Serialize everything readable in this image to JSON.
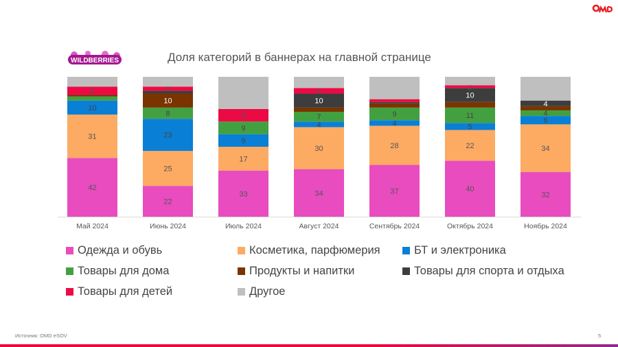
{
  "header": {
    "logo_text": "WILDBERRIES",
    "brand_logo": "OMD"
  },
  "footer": {
    "source": "Источник: OMD eSOV",
    "page_number": "5"
  },
  "chart_data": {
    "type": "bar",
    "stacked": true,
    "title": "Доля категорий в баннерах на главной странице",
    "xlabel": "",
    "ylabel": "",
    "ylim": [
      0,
      100
    ],
    "grid": false,
    "legend_position": "bottom",
    "categories": [
      "Май 2024",
      "Июнь 2024",
      "Июль 2024",
      "Август 2024",
      "Сентябрь 2024",
      "Октябрь 2024",
      "Ноябрь 2024"
    ],
    "series": [
      {
        "name": "Одежда и обувь",
        "color": "#e84cbf",
        "label_color": "#555555",
        "values": [
          42,
          22,
          33,
          34,
          37,
          40,
          32
        ],
        "labels": [
          "42",
          "22",
          "33",
          "34",
          "37",
          "40",
          "32"
        ]
      },
      {
        "name": "Косметика, парфюмерия",
        "color": "#fdaa63",
        "label_color": "#555555",
        "values": [
          31,
          25,
          17,
          30,
          28,
          22,
          34
        ],
        "labels": [
          "31",
          "25",
          "17",
          "30",
          "28",
          "22",
          "34"
        ]
      },
      {
        "name": "БТ и электроника",
        "color": "#0a7fd6",
        "label_color": "#444444",
        "values": [
          10,
          23,
          9,
          4,
          4,
          5,
          6
        ],
        "labels": [
          "10",
          "23",
          "9",
          "4",
          "4",
          "5",
          "6"
        ]
      },
      {
        "name": "Товары для дома",
        "color": "#43a041",
        "label_color": "#444444",
        "values": [
          3,
          8,
          9,
          7,
          9,
          11,
          4
        ],
        "labels": [
          "",
          "8",
          "9",
          "7",
          "9",
          "11",
          "4"
        ]
      },
      {
        "name": "Продукты и напитки",
        "color": "#7a3400",
        "label_color": "#ffffff",
        "values": [
          1,
          10,
          0,
          3,
          3,
          4,
          3
        ],
        "labels": [
          "",
          "10",
          "",
          "",
          "",
          "",
          ""
        ]
      },
      {
        "name": "Товары для спорта и отдыха",
        "color": "#3d3d3d",
        "label_color": "#ffffff",
        "values": [
          0,
          2,
          0,
          10,
          1,
          10,
          4
        ],
        "labels": [
          "",
          "",
          "",
          "10",
          "",
          "10",
          "4"
        ]
      },
      {
        "name": "Товары для детей",
        "color": "#ec0a45",
        "label_color": "#555555",
        "values": [
          6,
          3,
          9,
          4,
          2,
          2,
          0
        ],
        "labels": [
          "6",
          "3",
          "9",
          "4",
          "",
          "2",
          ""
        ]
      },
      {
        "name": "Другое",
        "color": "#bfbfbf",
        "label_color": "#555555",
        "values": [
          7,
          7,
          23,
          8,
          16,
          6,
          17
        ],
        "labels": [
          "",
          "",
          "",
          "",
          "",
          "",
          ""
        ]
      }
    ]
  }
}
